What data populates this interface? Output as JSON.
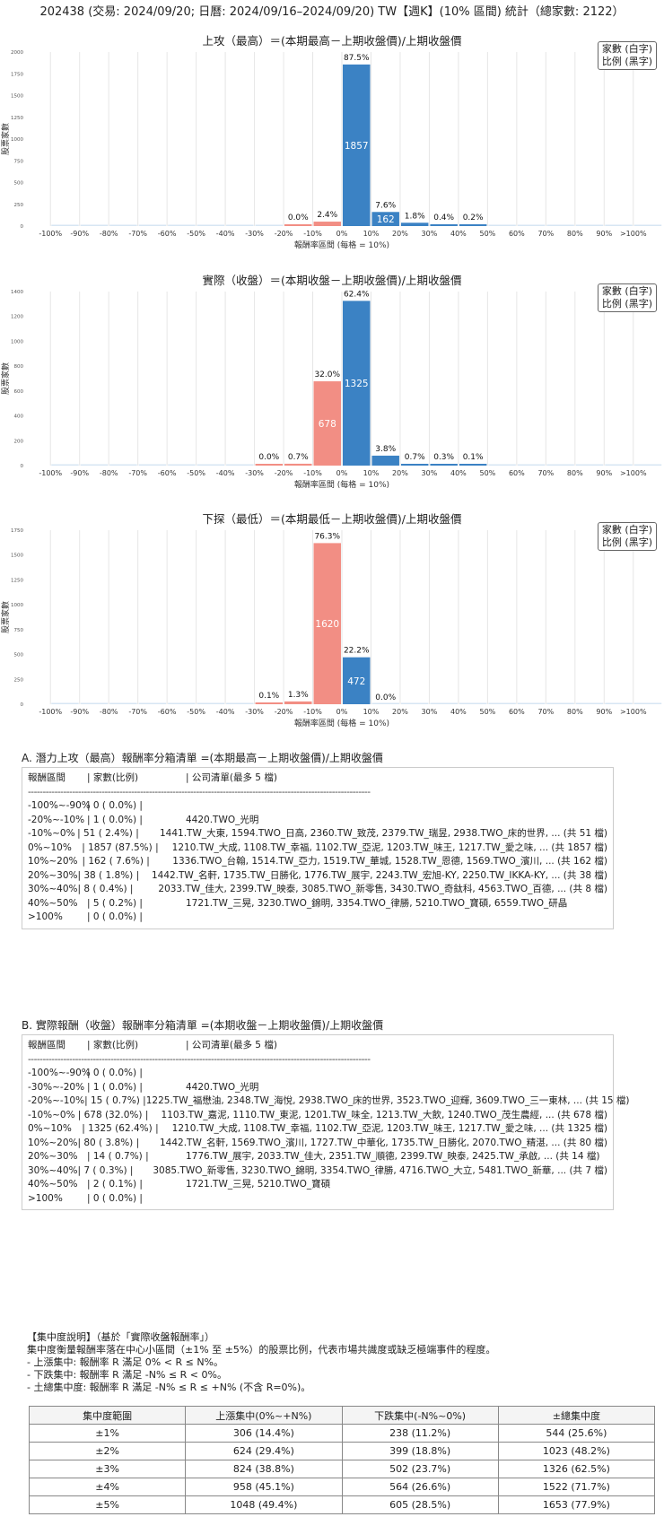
{
  "page_title": "202438 (交易: 2024/09/20; 日曆: 2024/09/16–2024/09/20) TW【週K】(10% 區間) 統計（總家數: 2122）",
  "legend": {
    "line1": "家數 (白字)",
    "line2": "比例 (黑字)"
  },
  "colors": {
    "positive": "#3b82c4",
    "negative": "#f28e84",
    "grid": "#e6e6e6"
  },
  "chart_data": [
    {
      "type": "bar",
      "title": "上攻（最高）＝(本期最高－上期收盤價)/上期收盤價",
      "xlabel": "報酬率區間 (每格 = 10%)",
      "ylabel": "股票家數",
      "ylim": [
        0,
        2000
      ],
      "yticks": [
        "0",
        "250",
        "500",
        "750",
        "1000",
        "1250",
        "1500",
        "1750",
        "2000"
      ],
      "categories": [
        "-100%",
        "-90%",
        "-80%",
        "-70%",
        "-60%",
        "-50%",
        "-40%",
        "-30%",
        "-20%",
        "-10%",
        "0%",
        "10%",
        "20%",
        "30%",
        "40%",
        "50%",
        "60%",
        "70%",
        "80%",
        "90%",
        ">100%"
      ],
      "bars": [
        {
          "start": "-20%",
          "count": 1,
          "pct": "0.0%",
          "sign": "neg"
        },
        {
          "start": "-10%",
          "count": 51,
          "pct": "2.4%",
          "sign": "neg"
        },
        {
          "start": "0%",
          "count": 1857,
          "pct": "87.5%",
          "sign": "pos"
        },
        {
          "start": "10%",
          "count": 162,
          "pct": "7.6%",
          "sign": "pos"
        },
        {
          "start": "20%",
          "count": 38,
          "pct": "1.8%",
          "sign": "pos"
        },
        {
          "start": "30%",
          "count": 8,
          "pct": "0.4%",
          "sign": "pos"
        },
        {
          "start": "40%",
          "count": 5,
          "pct": "0.2%",
          "sign": "pos"
        }
      ]
    },
    {
      "type": "bar",
      "title": "實際（收盤）＝(本期收盤－上期收盤價)/上期收盤價",
      "xlabel": "報酬率區間 (每格 = 10%)",
      "ylabel": "股票家數",
      "ylim": [
        0,
        1400
      ],
      "yticks": [
        "0",
        "200",
        "400",
        "600",
        "800",
        "1000",
        "1200",
        "1400"
      ],
      "categories": [
        "-100%",
        "-90%",
        "-80%",
        "-70%",
        "-60%",
        "-50%",
        "-40%",
        "-30%",
        "-20%",
        "-10%",
        "0%",
        "10%",
        "20%",
        "30%",
        "40%",
        "50%",
        "60%",
        "70%",
        "80%",
        "90%",
        ">100%"
      ],
      "bars": [
        {
          "start": "-30%",
          "count": 1,
          "pct": "0.0%",
          "sign": "neg"
        },
        {
          "start": "-20%",
          "count": 15,
          "pct": "0.7%",
          "sign": "neg"
        },
        {
          "start": "-10%",
          "count": 678,
          "pct": "32.0%",
          "sign": "neg"
        },
        {
          "start": "0%",
          "count": 1325,
          "pct": "62.4%",
          "sign": "pos"
        },
        {
          "start": "10%",
          "count": 80,
          "pct": "3.8%",
          "sign": "pos"
        },
        {
          "start": "20%",
          "count": 14,
          "pct": "0.7%",
          "sign": "pos"
        },
        {
          "start": "30%",
          "count": 7,
          "pct": "0.3%",
          "sign": "pos"
        },
        {
          "start": "40%",
          "count": 2,
          "pct": "0.1%",
          "sign": "pos"
        }
      ]
    },
    {
      "type": "bar",
      "title": "下探（最低）＝(本期最低－上期收盤價)/上期收盤價",
      "xlabel": "報酬率區間 (每格 = 10%)",
      "ylabel": "股票家數",
      "ylim": [
        0,
        1750
      ],
      "yticks": [
        "0",
        "250",
        "500",
        "750",
        "1000",
        "1250",
        "1500",
        "1750"
      ],
      "categories": [
        "-100%",
        "-90%",
        "-80%",
        "-70%",
        "-60%",
        "-50%",
        "-40%",
        "-30%",
        "-20%",
        "-10%",
        "0%",
        "10%",
        "20%",
        "30%",
        "40%",
        "50%",
        "60%",
        "70%",
        "80%",
        "90%",
        ">100%"
      ],
      "bars": [
        {
          "start": "-30%",
          "count": 2,
          "pct": "0.1%",
          "sign": "neg"
        },
        {
          "start": "-20%",
          "count": 28,
          "pct": "1.3%",
          "sign": "neg"
        },
        {
          "start": "-10%",
          "count": 1620,
          "pct": "76.3%",
          "sign": "neg"
        },
        {
          "start": "0%",
          "count": 472,
          "pct": "22.2%",
          "sign": "pos"
        },
        {
          "start": "10%",
          "count": 0,
          "pct": "0.0%",
          "sign": "pos"
        }
      ]
    }
  ],
  "list_a": {
    "title": "A. 潛力上攻（最高）報酬率分箱清單 =(本期最高－上期收盤價)/上期收盤價",
    "header": {
      "range": "報酬區間",
      "count": "| 家數(比例)",
      "list": "| 公司清單(最多 5 檔)"
    },
    "separator": "--------------------------------------------------------------------------------------------------------------------",
    "rows": [
      {
        "range": "-100%~-90%",
        "count": "|    0 ( 0.0%) |",
        "list": ""
      },
      {
        "range": "-20%~-10%",
        "count": "|    1 ( 0.0%) |",
        "list": "4420.TWO_光明"
      },
      {
        "range": "-10%~0%",
        "count": "|   51 ( 2.4%) |",
        "list": "1441.TW_大東, 1594.TWO_日高, 2360.TW_致茂, 2379.TW_瑞昱, 2938.TWO_床的世界, ... (共 51 檔)"
      },
      {
        "range": "0%~10%",
        "count": "| 1857 (87.5%) |",
        "list": "1210.TW_大成, 1108.TW_幸福, 1102.TW_亞泥, 1203.TW_味王, 1217.TW_愛之味, ... (共 1857 檔)"
      },
      {
        "range": "10%~20%",
        "count": "|  162 ( 7.6%) |",
        "list": "1336.TWO_台翰, 1514.TW_亞力, 1519.TW_華城, 1528.TW_恩德, 1569.TWO_濱川, ... (共 162 檔)"
      },
      {
        "range": "20%~30%",
        "count": "|   38 ( 1.8%) |",
        "list": "1442.TW_名軒, 1735.TW_日勝化, 1776.TW_展宇, 2243.TW_宏旭-KY, 2250.TW_IKKA-KY, ... (共 38 檔)"
      },
      {
        "range": "30%~40%",
        "count": "|    8 ( 0.4%) |",
        "list": "2033.TW_佳大, 2399.TW_映泰, 3085.TWO_新零售, 3430.TWO_奇鈦科, 4563.TWO_百德, ... (共 8 檔)"
      },
      {
        "range": "40%~50%",
        "count": "|    5 ( 0.2%) |",
        "list": "1721.TW_三晃, 3230.TWO_錦明, 3354.TWO_律勝, 5210.TWO_寶碩, 6559.TWO_研晶"
      },
      {
        "range": ">100%",
        "count": "|    0 ( 0.0%) |",
        "list": ""
      }
    ]
  },
  "list_b": {
    "title": "B. 實際報酬（收盤）報酬率分箱清單 =(本期收盤－上期收盤價)/上期收盤價",
    "header": {
      "range": "報酬區間",
      "count": "| 家數(比例)",
      "list": "| 公司清單(最多 5 檔)"
    },
    "separator": "--------------------------------------------------------------------------------------------------------------------",
    "rows": [
      {
        "range": "-100%~-90%",
        "count": "|    0 ( 0.0%) |",
        "list": ""
      },
      {
        "range": "-30%~-20%",
        "count": "|    1 ( 0.0%) |",
        "list": "4420.TWO_光明"
      },
      {
        "range": "-20%~-10%",
        "count": "|   15 ( 0.7%) |",
        "list": "1225.TW_福懋油, 2348.TW_海悅, 2938.TWO_床的世界, 3523.TWO_迎輝, 3609.TWO_三一東林, ... (共 15 檔)"
      },
      {
        "range": "-10%~0%",
        "count": "|  678 (32.0%) |",
        "list": "1103.TW_嘉泥, 1110.TW_東泥, 1201.TW_味全, 1213.TW_大飲, 1240.TWO_茂生農經, ... (共 678 檔)"
      },
      {
        "range": "0%~10%",
        "count": "| 1325 (62.4%) |",
        "list": "1210.TW_大成, 1108.TW_幸福, 1102.TW_亞泥, 1203.TW_味王, 1217.TW_愛之味, ... (共 1325 檔)"
      },
      {
        "range": "10%~20%",
        "count": "|   80 ( 3.8%) |",
        "list": "1442.TW_名軒, 1569.TWO_濱川, 1727.TW_中華化, 1735.TW_日勝化, 2070.TWO_精湛, ... (共 80 檔)"
      },
      {
        "range": "20%~30%",
        "count": "|   14 ( 0.7%) |",
        "list": "1776.TW_展宇, 2033.TW_佳大, 2351.TW_順德, 2399.TW_映泰, 2425.TW_承啟, ... (共 14 檔)"
      },
      {
        "range": "30%~40%",
        "count": "|    7 ( 0.3%) |",
        "list": "3085.TWO_新零售, 3230.TWO_錦明, 3354.TWO_律勝, 4716.TWO_大立, 5481.TWO_新華, ... (共 7 檔)"
      },
      {
        "range": "40%~50%",
        "count": "|    2 ( 0.1%) |",
        "list": "1721.TW_三晃, 5210.TWO_寶碩"
      },
      {
        "range": ">100%",
        "count": "|    0 ( 0.0%) |",
        "list": ""
      }
    ]
  },
  "concentration": {
    "title": "【集中度說明】（基於「實際收盤報酬率」）",
    "desc": "集中度衡量報酬率落在中心小區間（±1% 至 ±5%）的股票比例，代表市場共識度或缺乏極端事件的程度。",
    "points": [
      "- 上漲集中: 報酬率 R 滿足 0% < R ≤ N%。",
      "- 下跌集中: 報酬率 R 滿足 -N% ≤ R < 0%。",
      "- 土總集中度: 報酬率 R 滿足 -N% ≤ R ≤ +N% (不含 R=0%)。"
    ],
    "headers": [
      "集中度範圍",
      "上漲集中(0%~+N%)",
      "下跌集中(-N%~0%)",
      "±總集中度"
    ],
    "rows": [
      [
        "±1%",
        "306 (14.4%)",
        "238 (11.2%)",
        "544 (25.6%)"
      ],
      [
        "±2%",
        "624 (29.4%)",
        "399 (18.8%)",
        "1023 (48.2%)"
      ],
      [
        "±3%",
        "824 (38.8%)",
        "502 (23.7%)",
        "1326 (62.5%)"
      ],
      [
        "±4%",
        "958 (45.1%)",
        "564 (26.6%)",
        "1522 (71.7%)"
      ],
      [
        "±5%",
        "1048 (49.4%)",
        "605 (28.5%)",
        "1653 (77.9%)"
      ]
    ]
  }
}
